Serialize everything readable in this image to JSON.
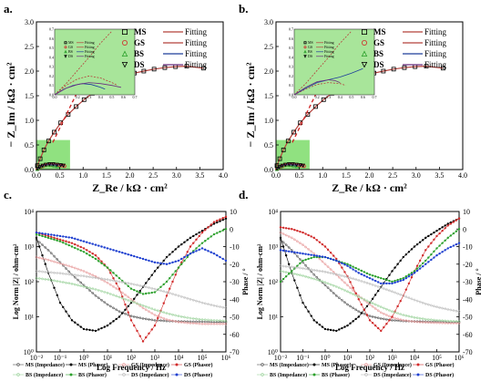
{
  "chart_data": [
    {
      "panel": "a.",
      "type": "scatter",
      "xlabel": "Z_Re / kΩ · cm²",
      "ylabel": "− Z_Im / kΩ · cm²",
      "xlim": [
        0,
        4.0
      ],
      "ylim": [
        0,
        3.0
      ],
      "xticks": [
        "0.0",
        "0.5",
        "1.0",
        "1.5",
        "2.0",
        "2.5",
        "3.0",
        "3.5",
        "4.0"
      ],
      "yticks": [
        "0.0",
        "0.5",
        "1.0",
        "1.5",
        "2.0",
        "2.5",
        "3.0"
      ],
      "legend": [
        {
          "name": "MS",
          "symbol": "square",
          "color": "#000000",
          "fit": "Fitting",
          "fit_color": "#b5403a"
        },
        {
          "name": "GS",
          "symbol": "circle",
          "color": "#d12a2a",
          "fit": "Fitting",
          "fit_color": "#b5403a"
        },
        {
          "name": "BS",
          "symbol": "triangle-up",
          "color": "#2ba02b",
          "fit": "Fitting",
          "fit_color": "#1e3f9a"
        },
        {
          "name": "DS",
          "symbol": "triangle-down",
          "color": "#000000",
          "fit": "Fitting",
          "fit_color": "#6b2f7f"
        }
      ],
      "series": [
        {
          "name": "MS",
          "x": [
            0.02,
            0.08,
            0.16,
            0.26,
            0.38,
            0.52,
            0.68,
            0.85,
            1.02,
            1.2,
            1.38,
            1.55,
            1.73,
            1.92,
            2.1,
            2.3,
            2.52,
            2.75,
            2.98,
            3.22,
            3.58
          ],
          "y": [
            0.08,
            0.22,
            0.4,
            0.58,
            0.76,
            0.95,
            1.12,
            1.28,
            1.42,
            1.55,
            1.66,
            1.76,
            1.84,
            1.91,
            1.96,
            2.0,
            2.04,
            2.07,
            2.09,
            2.1,
            2.06
          ]
        },
        {
          "name": "GS",
          "x": [
            0.02,
            0.05,
            0.09,
            0.14,
            0.2,
            0.26,
            0.33,
            0.4,
            0.47,
            0.54,
            0.6
          ],
          "y": [
            0.01,
            0.03,
            0.05,
            0.07,
            0.09,
            0.1,
            0.1,
            0.1,
            0.09,
            0.08,
            0.07
          ]
        },
        {
          "name": "BS",
          "x": [
            0.02,
            0.06,
            0.11,
            0.17,
            0.24,
            0.31,
            0.38,
            0.45
          ],
          "y": [
            0.01,
            0.04,
            0.07,
            0.09,
            0.1,
            0.09,
            0.08,
            0.07
          ]
        },
        {
          "name": "DS",
          "x": [
            0.02,
            0.07,
            0.13,
            0.2,
            0.28,
            0.36,
            0.44,
            0.52,
            0.58
          ],
          "y": [
            0.02,
            0.05,
            0.08,
            0.1,
            0.11,
            0.11,
            0.1,
            0.09,
            0.08
          ]
        }
      ]
    },
    {
      "panel": "b.",
      "type": "scatter",
      "xlabel": "Z_Re / kΩ · cm²",
      "ylabel": "− Z_Im / kΩ · cm²",
      "xlim": [
        0,
        4.0
      ],
      "ylim": [
        0,
        3.0
      ],
      "xticks": [
        "0.0",
        "0.5",
        "1.0",
        "1.5",
        "2.0",
        "2.5",
        "3.0",
        "3.5",
        "4.0"
      ],
      "yticks": [
        "0.0",
        "0.5",
        "1.0",
        "1.5",
        "2.0",
        "2.5",
        "3.0"
      ],
      "legend": [
        {
          "name": "MS",
          "symbol": "square",
          "color": "#000000",
          "fit": "Fitting",
          "fit_color": "#b5403a"
        },
        {
          "name": "GS",
          "symbol": "circle",
          "color": "#d12a2a",
          "fit": "Fitting",
          "fit_color": "#b5403a"
        },
        {
          "name": "BS",
          "symbol": "triangle-up",
          "color": "#2ba02b",
          "fit": "Fitting",
          "fit_color": "#1e3f9a"
        },
        {
          "name": "DS",
          "symbol": "triangle-down",
          "color": "#000000",
          "fit": "Fitting",
          "fit_color": "#6b2f7f"
        }
      ],
      "series": [
        {
          "name": "MS",
          "x": [
            0.02,
            0.08,
            0.16,
            0.26,
            0.38,
            0.52,
            0.68,
            0.85,
            1.02,
            1.2,
            1.38,
            1.55,
            1.73,
            1.92,
            2.1,
            2.3,
            2.52,
            2.75,
            2.98,
            3.22,
            3.58
          ],
          "y": [
            0.08,
            0.22,
            0.4,
            0.58,
            0.76,
            0.95,
            1.12,
            1.28,
            1.42,
            1.55,
            1.66,
            1.76,
            1.84,
            1.91,
            1.96,
            2.0,
            2.04,
            2.07,
            2.09,
            2.1,
            2.06
          ]
        },
        {
          "name": "GS",
          "x": [
            0.02,
            0.05,
            0.09,
            0.14,
            0.2,
            0.26,
            0.33,
            0.4,
            0.47,
            0.54,
            0.6
          ],
          "y": [
            0.01,
            0.03,
            0.05,
            0.07,
            0.09,
            0.1,
            0.1,
            0.1,
            0.09,
            0.08,
            0.07
          ]
        },
        {
          "name": "BS",
          "x": [
            0.02,
            0.06,
            0.11,
            0.17,
            0.24,
            0.31,
            0.38,
            0.45
          ],
          "y": [
            0.01,
            0.04,
            0.07,
            0.09,
            0.1,
            0.09,
            0.08,
            0.07
          ]
        },
        {
          "name": "DS",
          "x": [
            0.02,
            0.07,
            0.13,
            0.2,
            0.28,
            0.36,
            0.44,
            0.52,
            0.58
          ],
          "y": [
            0.02,
            0.05,
            0.08,
            0.1,
            0.11,
            0.11,
            0.1,
            0.09,
            0.08
          ]
        }
      ]
    },
    {
      "panel": "c.",
      "type": "line",
      "xlabel": "Log Frequency / Hz",
      "ylabel": "Log Norm |Z| / ohm-cm²",
      "y2label": "Phase / °",
      "x_scale": "log",
      "xlim": [
        0.01,
        1000000
      ],
      "xticks": [
        "10⁻²",
        "10⁻¹",
        "10⁰",
        "10¹",
        "10²",
        "10³",
        "10⁴",
        "10⁵",
        "10⁶"
      ],
      "ylim": [
        1,
        10000
      ],
      "yticks": [
        "10⁰",
        "10¹",
        "10²",
        "10³",
        "10⁴"
      ],
      "y2lim": [
        -70,
        10
      ],
      "y2ticks": [
        "10",
        "0",
        "-10",
        "-20",
        "-30",
        "-40",
        "-50",
        "-60",
        "-70"
      ],
      "log_f": [
        -2,
        -1.5,
        -1,
        -0.5,
        0,
        0.5,
        1,
        1.5,
        2,
        2.5,
        3,
        3.5,
        4,
        4.5,
        5,
        5.5,
        6
      ],
      "series": [
        {
          "name": "MS (Impedance)",
          "color": "#555555",
          "kind": "impedance",
          "log_z": [
            3.2,
            2.9,
            2.55,
            2.2,
            1.9,
            1.6,
            1.35,
            1.15,
            1.02,
            0.95,
            0.9,
            0.88,
            0.87,
            0.86,
            0.86,
            0.85,
            0.85
          ]
        },
        {
          "name": "MS (Phasor)",
          "color": "#000000",
          "kind": "phase",
          "phase": [
            -5,
            -25,
            -42,
            -52,
            -57,
            -58,
            -55,
            -50,
            -42,
            -33,
            -24,
            -16,
            -10,
            -5,
            -1,
            3,
            6
          ]
        },
        {
          "name": "GS (Impedance)",
          "color": "#e89a9a",
          "kind": "impedance",
          "log_z": [
            2.7,
            2.62,
            2.52,
            2.42,
            2.3,
            2.15,
            1.97,
            1.75,
            1.5,
            1.25,
            1.05,
            0.92,
            0.85,
            0.82,
            0.8,
            0.8,
            0.8
          ]
        },
        {
          "name": "GS (Phasor)",
          "color": "#d12a2a",
          "kind": "phase",
          "phase": [
            -2,
            -4,
            -6,
            -8,
            -11,
            -15,
            -22,
            -34,
            -52,
            -64,
            -55,
            -38,
            -22,
            -10,
            -2,
            4,
            7
          ]
        },
        {
          "name": "BS (Impedance)",
          "color": "#9ad29a",
          "kind": "impedance",
          "log_z": [
            2.1,
            2.06,
            2.0,
            1.94,
            1.86,
            1.78,
            1.68,
            1.56,
            1.44,
            1.32,
            1.2,
            1.1,
            1.02,
            0.96,
            0.92,
            0.9,
            0.88
          ]
        },
        {
          "name": "BS (Phasor)",
          "color": "#2ba02b",
          "kind": "phase",
          "phase": [
            -3,
            -5,
            -7,
            -10,
            -13,
            -17,
            -22,
            -28,
            -34,
            -37,
            -36,
            -30,
            -22,
            -14,
            -8,
            -3,
            0
          ]
        },
        {
          "name": "DS (Impedance)",
          "color": "#bbbbbb",
          "kind": "impedance",
          "log_z": [
            2.3,
            2.27,
            2.24,
            2.2,
            2.16,
            2.11,
            2.06,
            2.0,
            1.94,
            1.87,
            1.79,
            1.7,
            1.6,
            1.5,
            1.4,
            1.32,
            1.25
          ]
        },
        {
          "name": "DS (Phasor)",
          "color": "#1e3fd0",
          "kind": "phase",
          "phase": [
            -2,
            -3,
            -4,
            -5,
            -7,
            -9,
            -11,
            -13,
            -15,
            -17,
            -19,
            -20,
            -18,
            -14,
            -11,
            -14,
            -18
          ]
        }
      ],
      "legend": [
        "MS (Impedance)",
        "MS (Phasor)",
        "GS (Impedance)",
        "GS (Phasor)",
        "BS (Impedance)",
        "BS (Phasor)",
        "DS (Impedance)",
        "DS (Phasor)"
      ]
    },
    {
      "panel": "d.",
      "type": "line",
      "xlabel": "Log Frequency / Hz",
      "ylabel": "Log Norm |Z| / ohm-cm²",
      "y2label": "Phase / °",
      "x_scale": "log",
      "xlim": [
        0.01,
        1000000
      ],
      "xticks": [
        "10⁻²",
        "10⁻¹",
        "10⁰",
        "10¹",
        "10²",
        "10³",
        "10⁴",
        "10⁵",
        "10⁶"
      ],
      "ylim": [
        1,
        10000
      ],
      "yticks": [
        "10⁰",
        "10¹",
        "10²",
        "10³",
        "10⁴"
      ],
      "y2lim": [
        -70,
        10
      ],
      "y2ticks": [
        "10",
        "0",
        "-10",
        "-20",
        "-30",
        "-40",
        "-50",
        "-60",
        "-70"
      ],
      "log_f": [
        -2,
        -1.5,
        -1,
        -0.5,
        0,
        0.5,
        1,
        1.5,
        2,
        2.5,
        3,
        3.5,
        4,
        4.5,
        5,
        5.5,
        6
      ],
      "series": [
        {
          "name": "MS (Impedance)",
          "color": "#555555",
          "kind": "impedance",
          "log_z": [
            3.2,
            2.9,
            2.55,
            2.2,
            1.9,
            1.6,
            1.35,
            1.15,
            1.02,
            0.95,
            0.9,
            0.88,
            0.87,
            0.86,
            0.86,
            0.85,
            0.85
          ]
        },
        {
          "name": "MS (Phasor)",
          "color": "#000000",
          "kind": "phase",
          "phase": [
            -5,
            -25,
            -42,
            -52,
            -57,
            -58,
            -55,
            -50,
            -42,
            -33,
            -24,
            -16,
            -10,
            -5,
            -1,
            3,
            6
          ]
        },
        {
          "name": "GS (Impedance)",
          "color": "#e89a9a",
          "kind": "impedance",
          "log_z": [
            3.4,
            3.25,
            3.05,
            2.8,
            2.5,
            2.2,
            1.9,
            1.6,
            1.35,
            1.12,
            0.98,
            0.9,
            0.86,
            0.84,
            0.83,
            0.82,
            0.82
          ]
        },
        {
          "name": "GS (Phasor)",
          "color": "#d12a2a",
          "kind": "phase",
          "phase": [
            1,
            0,
            -2,
            -5,
            -10,
            -17,
            -27,
            -40,
            -52,
            -58,
            -50,
            -38,
            -24,
            -12,
            -4,
            2,
            6
          ]
        },
        {
          "name": "BS (Impedance)",
          "color": "#9ad29a",
          "kind": "impedance",
          "log_z": [
            2.3,
            2.24,
            2.17,
            2.08,
            1.98,
            1.86,
            1.72,
            1.57,
            1.42,
            1.28,
            1.15,
            1.05,
            0.98,
            0.93,
            0.9,
            0.88,
            0.87
          ]
        },
        {
          "name": "BS (Phasor)",
          "color": "#2ba02b",
          "kind": "phase",
          "phase": [
            -30,
            -24,
            -18,
            -16,
            -16,
            -18,
            -20,
            -23,
            -26,
            -28,
            -30,
            -28,
            -24,
            -18,
            -11,
            -5,
            0
          ]
        },
        {
          "name": "DS (Impedance)",
          "color": "#bbbbbb",
          "kind": "impedance",
          "log_z": [
            2.45,
            2.42,
            2.38,
            2.33,
            2.28,
            2.21,
            2.13,
            2.04,
            1.94,
            1.83,
            1.72,
            1.6,
            1.48,
            1.37,
            1.28,
            1.21,
            1.15
          ]
        },
        {
          "name": "DS (Phasor)",
          "color": "#1e3fd0",
          "kind": "phase",
          "phase": [
            -12,
            -13,
            -14,
            -15,
            -16,
            -18,
            -21,
            -25,
            -28,
            -31,
            -31,
            -29,
            -25,
            -20,
            -15,
            -11,
            -8
          ]
        }
      ],
      "legend": [
        "MS (Impedance)",
        "MS (Phasor)",
        "GS (Impedance)",
        "GS (Phasor)",
        "BS (Impedance)",
        "BS (Phasor)",
        "DS (Impedance)",
        "DS (Phasor)"
      ]
    }
  ]
}
